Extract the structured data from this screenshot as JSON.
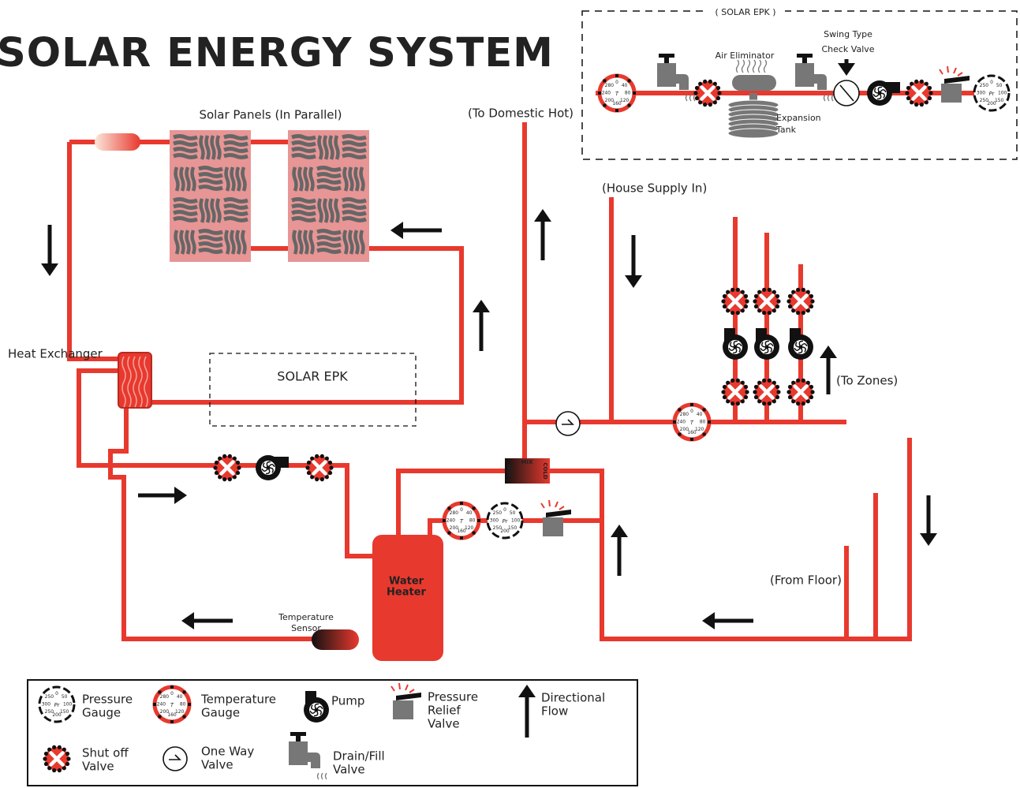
{
  "title": "SOLAR ENERGY SYSTEM",
  "labels": {
    "solar_panels": "Solar Panels (In Parallel)",
    "to_domestic_hot": "(To Domestic Hot)",
    "house_supply_in": "(House Supply In)",
    "heat_exchanger": "Heat Exchanger",
    "solar_epk_box": "SOLAR EPK",
    "to_zones": "(To Zones)",
    "from_floor": "(From Floor)",
    "temperature_sensor": [
      "Temperature",
      "Sensor"
    ],
    "water_heater": [
      "Water",
      "Heater"
    ],
    "mix": "MIX",
    "hot": "HOT",
    "cold": "COLD"
  },
  "epk": {
    "title": "( SOLAR EPK )",
    "swing_check_valve": [
      "Swing Type",
      "Check Valve"
    ],
    "air_eliminator": "Air Eliminator",
    "expansion_tank": [
      "Expansion",
      "Tank"
    ]
  },
  "gauges": {
    "pressure": {
      "scale": [
        "0",
        "50",
        "100",
        "150",
        "200",
        "250",
        "300",
        "250"
      ],
      "symbol": "Pr"
    },
    "temperature": {
      "scale": [
        "0",
        "40",
        "80",
        "120",
        "160",
        "200",
        "240",
        "280"
      ],
      "symbol": "T"
    }
  },
  "legend": {
    "items": [
      {
        "label": [
          "Pressure",
          "Gauge"
        ]
      },
      {
        "label": [
          "Temperature",
          "Gauge"
        ]
      },
      {
        "label": [
          "Pump"
        ]
      },
      {
        "label": [
          "Pressure",
          "Relief",
          "Valve"
        ]
      },
      {
        "label": [
          "Directional",
          "Flow"
        ]
      },
      {
        "label": [
          "Shut off",
          "Valve"
        ]
      },
      {
        "label": [
          "One Way",
          "Valve"
        ]
      },
      {
        "label": [
          "Drain/Fill",
          "Valve"
        ]
      }
    ]
  }
}
